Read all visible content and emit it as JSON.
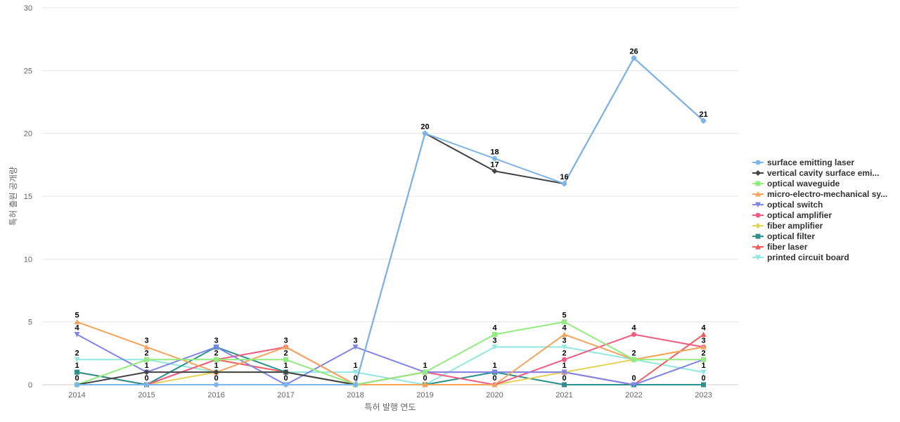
{
  "chart_data": {
    "type": "line",
    "title": "",
    "xlabel": "특허 발행 연도",
    "ylabel": "특허 출원 공개량",
    "ylim": [
      0,
      30
    ],
    "yticks": [
      0,
      5,
      10,
      15,
      20,
      25,
      30
    ],
    "grid": true,
    "legend_position": "right",
    "categories": [
      "2014",
      "2015",
      "2016",
      "2017",
      "2018",
      "2019",
      "2020",
      "2021",
      "2022",
      "2023"
    ],
    "series": [
      {
        "name": "surface emitting laser",
        "color": "#7cb5ec",
        "marker": "circle",
        "values": [
          0,
          0,
          0,
          0,
          0,
          20,
          18,
          16,
          26,
          21
        ]
      },
      {
        "name": "vertical cavity surface emi...",
        "color": "#434348",
        "marker": "diamond",
        "values": [
          0,
          1,
          1,
          1,
          0,
          20,
          17,
          16,
          26,
          21
        ]
      },
      {
        "name": "optical waveguide",
        "color": "#90ed7d",
        "marker": "square",
        "values": [
          0,
          2,
          2,
          2,
          0,
          1,
          4,
          5,
          2,
          2
        ]
      },
      {
        "name": "micro-electro-mechanical sy...",
        "color": "#f7a35c",
        "marker": "triangle",
        "values": [
          5,
          3,
          1,
          3,
          0,
          0,
          0,
          4,
          2,
          3
        ]
      },
      {
        "name": "optical switch",
        "color": "#8085e9",
        "marker": "triangle-down",
        "values": [
          4,
          1,
          3,
          0,
          3,
          1,
          1,
          1,
          0,
          2
        ]
      },
      {
        "name": "optical amplifier",
        "color": "#f15c80",
        "marker": "circle",
        "values": [
          0,
          0,
          2,
          3,
          0,
          1,
          0,
          2,
          4,
          3
        ]
      },
      {
        "name": "fiber amplifier",
        "color": "#e4d354",
        "marker": "diamond",
        "values": [
          0,
          0,
          1,
          1,
          0,
          0,
          0,
          1,
          2,
          3
        ]
      },
      {
        "name": "optical filter",
        "color": "#2b908f",
        "marker": "square",
        "values": [
          1,
          0,
          3,
          1,
          0,
          0,
          1,
          0,
          0,
          0
        ]
      },
      {
        "name": "fiber laser",
        "color": "#f45b5b",
        "marker": "triangle",
        "values": [
          1,
          0,
          2,
          1,
          0,
          1,
          1,
          1,
          0,
          4
        ]
      },
      {
        "name": "printed circuit board",
        "color": "#91e8e1",
        "marker": "triangle-down",
        "values": [
          2,
          2,
          1,
          1,
          1,
          0,
          3,
          3,
          2,
          1
        ]
      }
    ]
  }
}
